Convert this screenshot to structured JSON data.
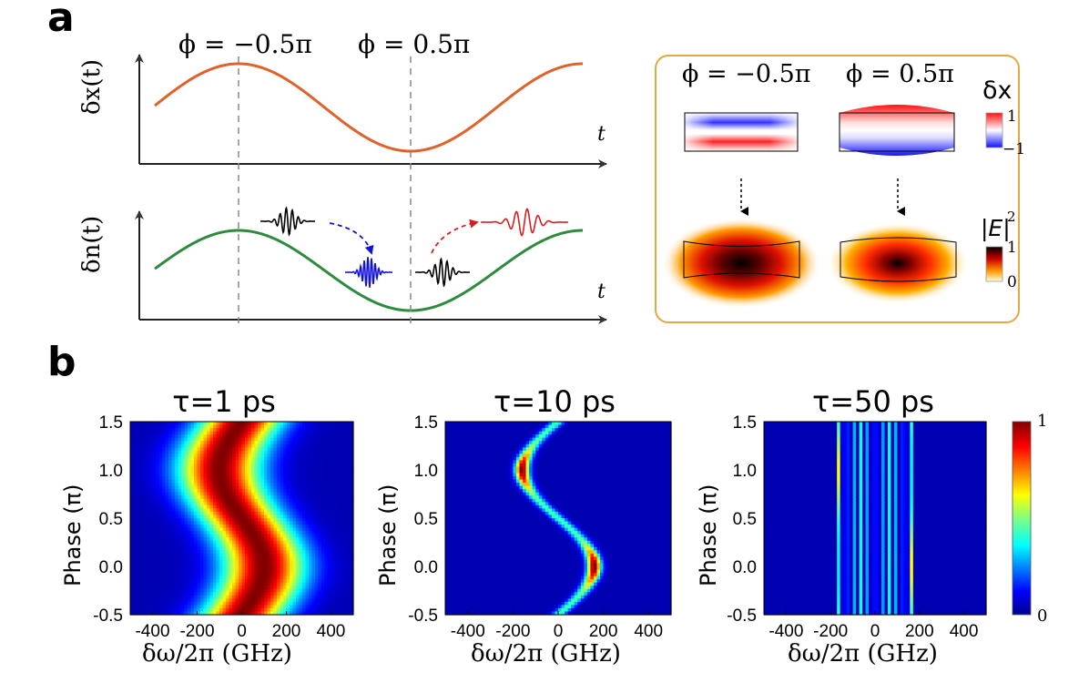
{
  "panel_a": {
    "letter": "a",
    "phase_neg_label": "ϕ = −0.5π",
    "phase_pos_label": "ϕ = 0.5π",
    "top_ylabel": "δx(t)",
    "bottom_ylabel": "δn(t)",
    "t_label": "t",
    "colors": {
      "dx_curve": "#e0622a",
      "dn_curve": "#2e8b3e",
      "pulse_in": "#000000",
      "pulse_blue": "#1414d6",
      "pulse_red": "#d42020"
    }
  },
  "inset": {
    "phase_neg_label": "ϕ = −0.5π",
    "phase_pos_label": "ϕ = 0.5π",
    "dx_label": "δx",
    "dx_max": "1",
    "dx_min": "−1",
    "E_label": "|E|",
    "E_sup": "2",
    "E_max": "1",
    "E_min": "0",
    "border_color": "#e8a640"
  },
  "panel_b": {
    "letter": "b",
    "colorbar_max": "1",
    "colorbar_min": "0"
  },
  "chart_data": [
    {
      "type": "heatmap",
      "title": "τ=1 ps",
      "xlabel": "δω/2π (GHz)",
      "ylabel": "Phase (π)",
      "xlim": [
        -500,
        500
      ],
      "ylim": [
        -0.5,
        1.5
      ],
      "xticks": [
        "-400",
        "-200",
        "0",
        "200",
        "400"
      ],
      "yticks": [
        "1.5",
        "1.0",
        "0.5",
        "0.0",
        "-0.5"
      ],
      "band_center_shift_GHz": 100,
      "band_width_GHz": 220
    },
    {
      "type": "heatmap",
      "title": "τ=10 ps",
      "xlabel": "δω/2π (GHz)",
      "ylabel": "Phase (π)",
      "xlim": [
        -500,
        500
      ],
      "ylim": [
        -0.5,
        1.5
      ],
      "xticks": [
        "-400",
        "-200",
        "0",
        "200",
        "400"
      ],
      "yticks": [
        "1.5",
        "1.0",
        "0.5",
        "0.0",
        "-0.5"
      ],
      "band_center_shift_GHz": 160,
      "band_width_GHz": 30
    },
    {
      "type": "heatmap",
      "title": "τ=50 ps",
      "xlabel": "δω/2π (GHz)",
      "ylabel": "Phase (π)",
      "xlim": [
        -500,
        500
      ],
      "ylim": [
        -0.5,
        1.5
      ],
      "xticks": [
        "-400",
        "-200",
        "0",
        "200",
        "400"
      ],
      "yticks": [
        "1.5",
        "1.0",
        "0.5",
        "0.0",
        "-0.5"
      ],
      "sidebands_GHz": [
        -160,
        -128,
        -96,
        -64,
        -32,
        0,
        32,
        64,
        96,
        128,
        160
      ]
    }
  ]
}
